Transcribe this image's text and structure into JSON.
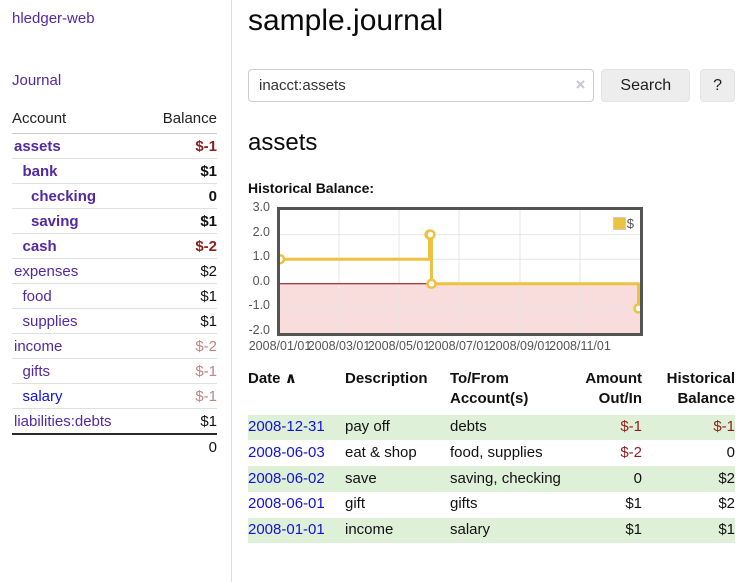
{
  "sidebar": {
    "brand": "hledger-web",
    "journal_link": "Journal",
    "accounts_table": {
      "headers": {
        "account": "Account",
        "balance": "Balance"
      },
      "rows": [
        {
          "name": "assets",
          "balance": "$-1",
          "indent": 1,
          "bold": true,
          "balance_style": "neg"
        },
        {
          "name": "bank",
          "balance": "$1",
          "indent": 2,
          "bold": true,
          "balance_style": ""
        },
        {
          "name": "checking",
          "balance": "0",
          "indent": 3,
          "bold": true,
          "balance_style": ""
        },
        {
          "name": "saving",
          "balance": "$1",
          "indent": 3,
          "bold": true,
          "balance_style": ""
        },
        {
          "name": "cash",
          "balance": "$-2",
          "indent": 2,
          "bold": true,
          "balance_style": "neg"
        },
        {
          "name": "expenses",
          "balance": "$2",
          "indent": 1,
          "bold": false,
          "balance_style": ""
        },
        {
          "name": "food",
          "balance": "$1",
          "indent": 2,
          "bold": false,
          "balance_style": ""
        },
        {
          "name": "supplies",
          "balance": "$1",
          "indent": 2,
          "bold": false,
          "balance_style": ""
        },
        {
          "name": "income",
          "balance": "$-2",
          "indent": 1,
          "bold": false,
          "balance_style": "negdim"
        },
        {
          "name": "gifts",
          "balance": "$-1",
          "indent": 2,
          "bold": false,
          "balance_style": "negdim"
        },
        {
          "name": "salary",
          "balance": "$-1",
          "indent": 2,
          "bold": false,
          "balance_style": "negdim",
          "link_style": "blue"
        },
        {
          "name": "liabilities:debts",
          "balance": "$1",
          "indent": 1,
          "bold": false,
          "balance_style": ""
        }
      ],
      "total": "0"
    }
  },
  "main": {
    "title": "sample.journal",
    "search": {
      "value": "inacct:assets",
      "clear_icon": "×",
      "search_button": "Search",
      "help_button": "?"
    },
    "account_heading": "assets",
    "chart_label": "Historical Balance:"
  },
  "register": {
    "headers": {
      "date": "Date",
      "sort_icon": "∧",
      "description": "Description",
      "accounts": "To/From\nAccount(s)",
      "amount": "Amount\nOut/In",
      "balance": "Historical\nBalance"
    },
    "rows": [
      {
        "date": "2008-12-31",
        "description": "pay off",
        "accounts": "debts",
        "amount": "$-1",
        "amount_neg": true,
        "balance": "$-1",
        "balance_neg": true
      },
      {
        "date": "2008-06-03",
        "description": "eat & shop",
        "accounts": "food, supplies",
        "amount": "$-2",
        "amount_neg": true,
        "balance": "0",
        "balance_neg": false
      },
      {
        "date": "2008-06-02",
        "description": "save",
        "accounts": "saving, checking",
        "amount": "0",
        "amount_neg": false,
        "balance": "$2",
        "balance_neg": false
      },
      {
        "date": "2008-06-01",
        "description": "gift",
        "accounts": "gifts",
        "amount": "$1",
        "amount_neg": false,
        "balance": "$2",
        "balance_neg": false
      },
      {
        "date": "2008-01-01",
        "description": "income",
        "accounts": "salary",
        "amount": "$1",
        "amount_neg": false,
        "balance": "$1",
        "balance_neg": false
      }
    ]
  },
  "chart_data": {
    "type": "line",
    "title": "Historical Balance:",
    "step": true,
    "series": [
      {
        "name": "$",
        "color": "#edc240",
        "points": [
          [
            "2008-01-01",
            1
          ],
          [
            "2008-06-01",
            2
          ],
          [
            "2008-06-02",
            2
          ],
          [
            "2008-06-03",
            0
          ],
          [
            "2008-12-31",
            -1
          ]
        ]
      }
    ],
    "x_ticks": [
      "2008/01/01",
      "2008/03/01",
      "2008/05/01",
      "2008/07/01",
      "2008/09/01",
      "2008/11/01"
    ],
    "y_ticks": [
      "3.0",
      "2.0",
      "1.0",
      "0.0",
      "-1.0",
      "-2.0"
    ],
    "ylim": [
      -2,
      3
    ],
    "x_start": "2008-01-01",
    "x_range_days": 366,
    "grid": true,
    "gridline_color": "#e6e6e6",
    "border_color": "#545454",
    "negative_region_color": "#f9dcdc",
    "zero_line_color": "#8b0000",
    "legend": {
      "label": "$",
      "position": "top-right"
    }
  }
}
